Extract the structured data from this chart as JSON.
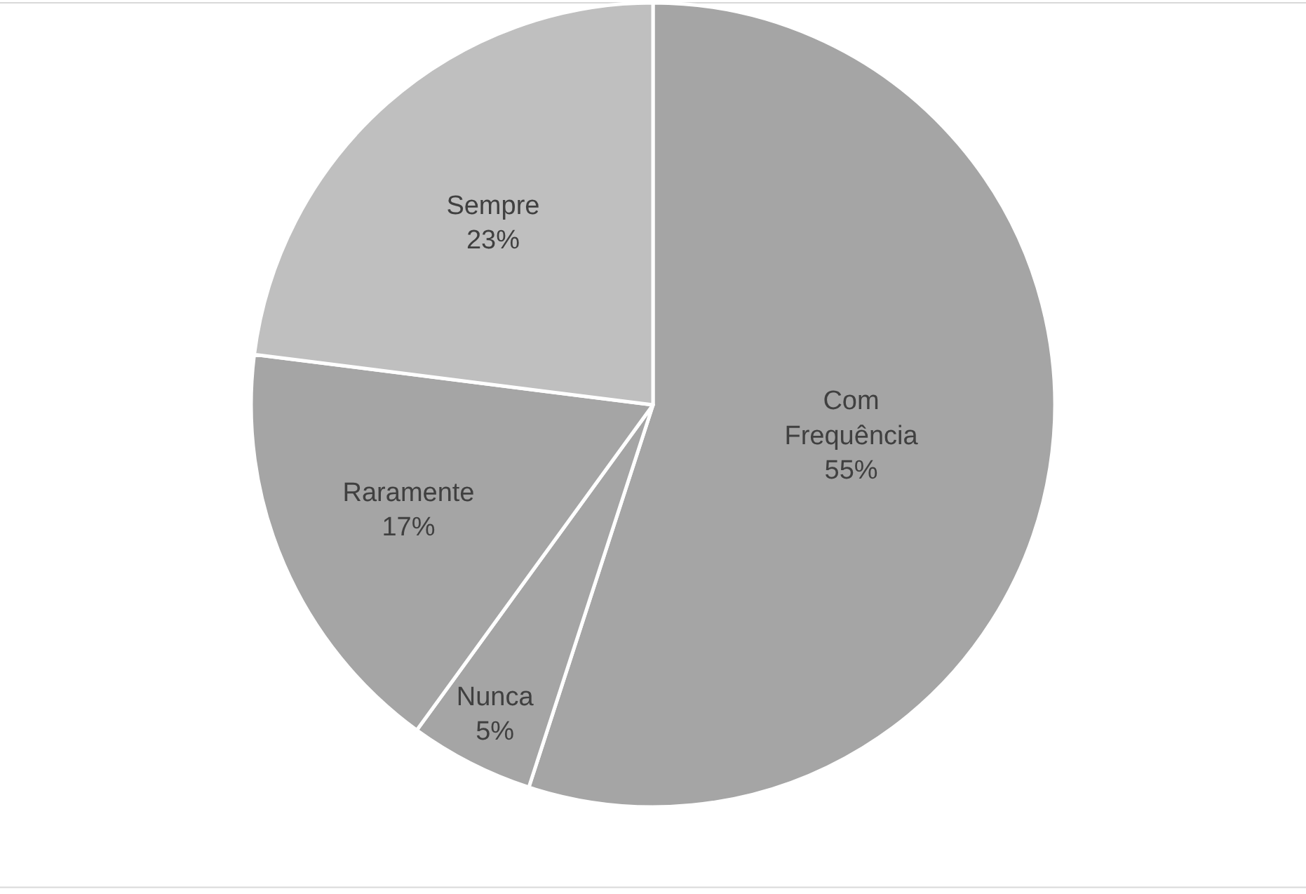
{
  "chart_data": {
    "type": "pie",
    "categories": [
      "Com Frequência",
      "Nunca",
      "Raramente",
      "Sempre"
    ],
    "values": [
      55,
      5,
      17,
      23
    ],
    "colors": [
      "#a5a5a5",
      "#a5a5a5",
      "#a5a5a5",
      "#bfbfbf"
    ],
    "value_labels": [
      "55%",
      "5%",
      "17%",
      "23%"
    ],
    "legend": false
  }
}
